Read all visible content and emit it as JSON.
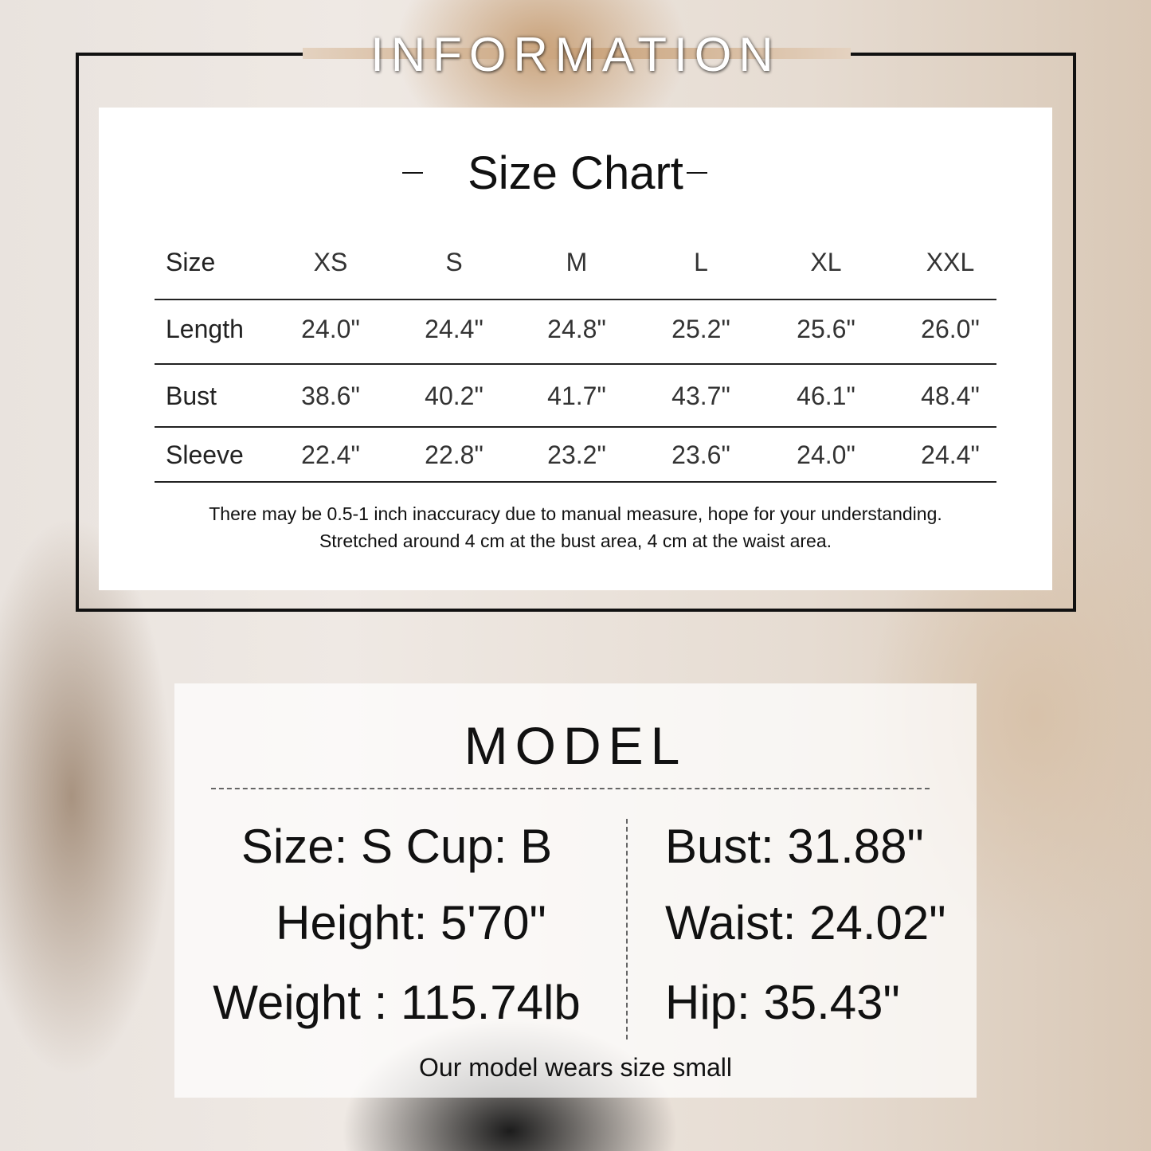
{
  "header": {
    "title": "INFORMATION"
  },
  "size_chart": {
    "title": "Size Chart",
    "columns": [
      "Size",
      "XS",
      "S",
      "M",
      "L",
      "XL",
      "XXL"
    ],
    "rows": [
      {
        "label": "Length",
        "values": [
          "24.0\"",
          "24.4\"",
          "24.8\"",
          "25.2\"",
          "25.6\"",
          "26.0\""
        ]
      },
      {
        "label": "Bust",
        "values": [
          "38.6\"",
          "40.2\"",
          "41.7\"",
          "43.7\"",
          "46.1\"",
          "48.4\""
        ]
      },
      {
        "label": "Sleeve",
        "values": [
          "22.4\"",
          "22.8\"",
          "23.2\"",
          "23.6\"",
          "24.0\"",
          "24.4\""
        ]
      }
    ],
    "notes": [
      "There may be 0.5-1 inch inaccuracy due to manual measure, hope for your understanding.",
      "Stretched around 4 cm at the bust area, 4 cm at the waist area."
    ]
  },
  "model": {
    "title": "MODEL",
    "left": [
      "Size: S Cup: B",
      "Height: 5'70\"",
      "Weight : 115.74lb"
    ],
    "right": [
      "Bust: 31.88\"",
      "Waist: 24.02\"",
      "Hip: 35.43\""
    ],
    "footer": "Our model wears size small"
  }
}
